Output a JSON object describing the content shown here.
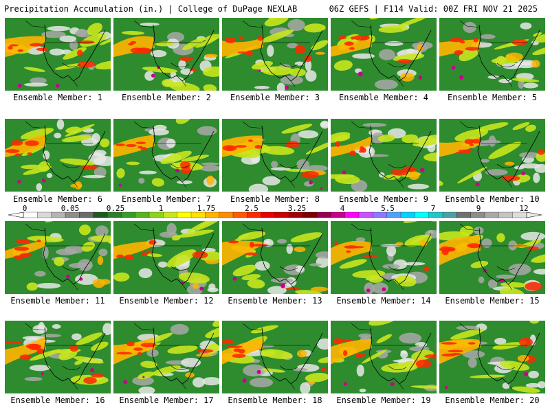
{
  "header": {
    "left": "Precipitation Accumulation (in.) | College of DuPage NEXLAB",
    "right": "06Z GEFS | F114 Valid: 00Z FRI NOV 21 2025"
  },
  "members": [
    "Ensemble Member: 1",
    "Ensemble Member: 2",
    "Ensemble Member: 3",
    "Ensemble Member: 4",
    "Ensemble Member: 5",
    "Ensemble Member: 6",
    "Ensemble Member: 7",
    "Ensemble Member: 8",
    "Ensemble Member: 9",
    "Ensemble Member: 10",
    "Ensemble Member: 11",
    "Ensemble Member: 12",
    "Ensemble Member: 13",
    "Ensemble Member: 14",
    "Ensemble Member: 15",
    "Ensemble Member: 16",
    "Ensemble Member: 17",
    "Ensemble Member: 18",
    "Ensemble Member: 19",
    "Ensemble Member: 20"
  ],
  "colorbar": {
    "ticks": [
      "0",
      "0.05",
      "0.25",
      "1",
      "1.75",
      "2.5",
      "3.25",
      "4",
      "5.5",
      "7",
      "9",
      "12"
    ],
    "colors": [
      "#ffffff",
      "#d8d8d8",
      "#b4b4b4",
      "#8c8c8c",
      "#6a6a6a",
      "#1e5a1e",
      "#2e7d2e",
      "#3a9a2a",
      "#58b41c",
      "#8ed21a",
      "#c8e61e",
      "#ffff00",
      "#ffe000",
      "#ffb400",
      "#ff8c00",
      "#ff5a00",
      "#ff2800",
      "#e60000",
      "#c80000",
      "#a00000",
      "#7a0000",
      "#960050",
      "#c8008c",
      "#ff00ff",
      "#c850ff",
      "#8c78ff",
      "#50a0ff",
      "#00d2ff",
      "#00ffff",
      "#20c8c8",
      "#4aa0a0",
      "#707070",
      "#8c8c8c",
      "#a8a8a8",
      "#c4c4c4",
      "#dcdcdc"
    ]
  },
  "colors": {
    "ocean_green": "#2e8b2e",
    "light_precip": "#c8e61e",
    "moderate_precip": "#ffb400",
    "heavy_precip": "#ff2800",
    "extreme_precip": "#c8008c",
    "dry": "#e8e8e8",
    "coastline": "#000000"
  }
}
